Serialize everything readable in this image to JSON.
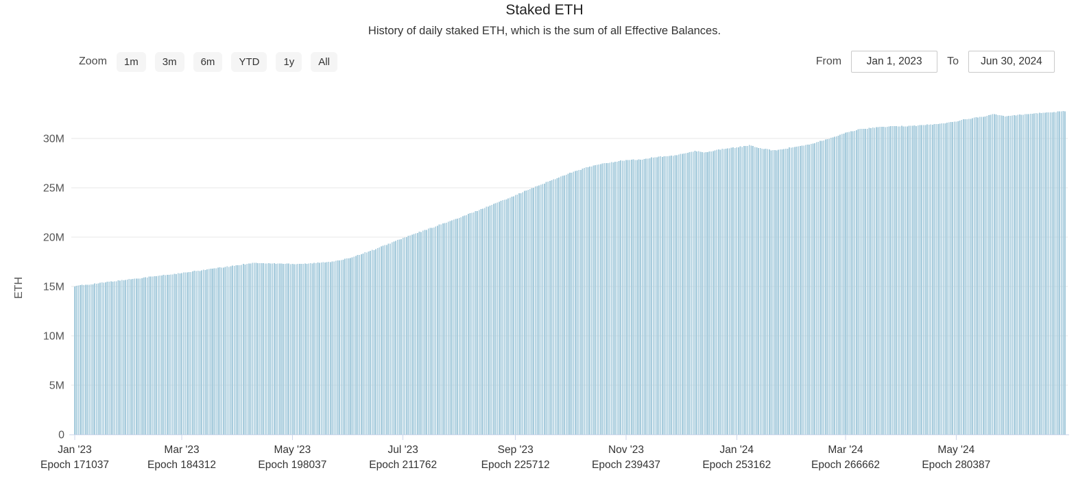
{
  "header": {
    "title": "Staked ETH",
    "subtitle": "History of daily staked ETH, which is the sum of all Effective Balances."
  },
  "toolbar": {
    "zoom_label": "Zoom",
    "zoom_buttons": [
      "1m",
      "3m",
      "6m",
      "YTD",
      "1y",
      "All"
    ],
    "from_label": "From",
    "from_value": "Jan 1, 2023",
    "to_label": "To",
    "to_value": "Jun 30, 2024"
  },
  "chart_data": {
    "type": "bar",
    "title": "Staked ETH",
    "xlabel": "",
    "ylabel": "ETH",
    "y_unit": "millions of ETH",
    "ylim": [
      0,
      33.75
    ],
    "grid": true,
    "legend": false,
    "x_range": {
      "start": "Jan 1, 2023",
      "end": "Jun 30, 2024",
      "days": 547
    },
    "yticks": {
      "values": [
        0,
        5,
        10,
        15,
        20,
        25,
        30
      ],
      "labels": [
        "0",
        "5M",
        "10M",
        "15M",
        "20M",
        "25M",
        "30M"
      ]
    },
    "xticks": [
      {
        "day": 0,
        "label": "Jan '23",
        "epoch": "Epoch 171037"
      },
      {
        "day": 59,
        "label": "Mar '23",
        "epoch": "Epoch 184312"
      },
      {
        "day": 120,
        "label": "May '23",
        "epoch": "Epoch 198037"
      },
      {
        "day": 181,
        "label": "Jul '23",
        "epoch": "Epoch 211762"
      },
      {
        "day": 243,
        "label": "Sep '23",
        "epoch": "Epoch 225712"
      },
      {
        "day": 304,
        "label": "Nov '23",
        "epoch": "Epoch 239437"
      },
      {
        "day": 365,
        "label": "Jan '24",
        "epoch": "Epoch 253162"
      },
      {
        "day": 425,
        "label": "Mar '24",
        "epoch": "Epoch 266662"
      },
      {
        "day": 486,
        "label": "May '24",
        "epoch": "Epoch 280387"
      }
    ],
    "series": [
      {
        "name": "Staked ETH",
        "point_format": "[day_offset_from_2023-01-01, staked_eth_millions]",
        "points": [
          [
            0,
            15.05
          ],
          [
            10,
            15.25
          ],
          [
            20,
            15.5
          ],
          [
            31,
            15.75
          ],
          [
            45,
            16.05
          ],
          [
            59,
            16.35
          ],
          [
            74,
            16.75
          ],
          [
            88,
            17.1
          ],
          [
            98,
            17.4
          ],
          [
            105,
            17.35
          ],
          [
            117,
            17.3
          ],
          [
            125,
            17.3
          ],
          [
            135,
            17.4
          ],
          [
            145,
            17.6
          ],
          [
            151,
            17.85
          ],
          [
            166,
            18.8
          ],
          [
            181,
            19.9
          ],
          [
            196,
            20.9
          ],
          [
            212,
            21.95
          ],
          [
            227,
            23.05
          ],
          [
            243,
            24.25
          ],
          [
            258,
            25.4
          ],
          [
            273,
            26.5
          ],
          [
            283,
            27.1
          ],
          [
            290,
            27.4
          ],
          [
            298,
            27.65
          ],
          [
            304,
            27.8
          ],
          [
            312,
            27.85
          ],
          [
            320,
            28.1
          ],
          [
            327,
            28.2
          ],
          [
            334,
            28.4
          ],
          [
            342,
            28.7
          ],
          [
            348,
            28.6
          ],
          [
            356,
            28.9
          ],
          [
            365,
            29.1
          ],
          [
            372,
            29.3
          ],
          [
            379,
            28.95
          ],
          [
            386,
            28.8
          ],
          [
            396,
            29.1
          ],
          [
            404,
            29.35
          ],
          [
            411,
            29.7
          ],
          [
            418,
            30.1
          ],
          [
            425,
            30.55
          ],
          [
            432,
            30.9
          ],
          [
            440,
            31.1
          ],
          [
            448,
            31.2
          ],
          [
            456,
            31.25
          ],
          [
            464,
            31.3
          ],
          [
            472,
            31.4
          ],
          [
            480,
            31.55
          ],
          [
            486,
            31.75
          ],
          [
            493,
            32.0
          ],
          [
            500,
            32.2
          ],
          [
            507,
            32.45
          ],
          [
            513,
            32.25
          ],
          [
            520,
            32.4
          ],
          [
            527,
            32.5
          ],
          [
            535,
            32.6
          ],
          [
            541,
            32.7
          ],
          [
            546,
            32.8
          ]
        ]
      }
    ],
    "style": {
      "bar_color": "#a6cbdc",
      "grid_color": "#e7e7e7",
      "axis_line_color": "#ccd6eb",
      "xtick_label_color": "#333333",
      "ytick_label_color": "#555555",
      "title_color": "#222222",
      "subtitle_color": "#333333",
      "background_color": "#ffffff"
    }
  }
}
